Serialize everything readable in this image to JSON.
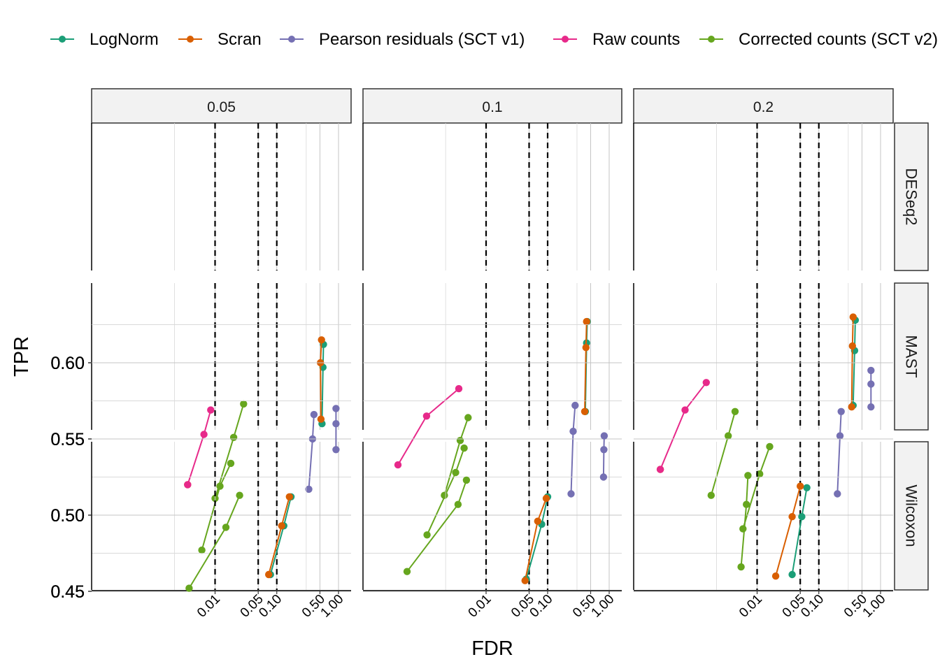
{
  "chart_data": {
    "type": "line",
    "xlabel": "FDR",
    "ylabel": "TPR",
    "x_scale": "log10",
    "xlim": [
      0.0001,
      1.0
    ],
    "ylim": [
      0.45,
      0.63
    ],
    "x_ticks": [
      {
        "value": 0.01,
        "label": "0.01"
      },
      {
        "value": 0.05,
        "label": "0.05"
      },
      {
        "value": 0.1,
        "label": "0.10"
      },
      {
        "value": 0.5,
        "label": "0.50"
      },
      {
        "value": 1.0,
        "label": "1.00"
      }
    ],
    "y_ticks": [
      {
        "value": 0.45,
        "label": "0.45"
      },
      {
        "value": 0.5,
        "label": "0.50"
      },
      {
        "value": 0.55,
        "label": "0.55"
      },
      {
        "value": 0.6,
        "label": "0.60"
      }
    ],
    "legend_position": "top",
    "grid": true,
    "series": [
      {
        "key": "lognorm",
        "name": "LogNorm",
        "color": "#1B9E77"
      },
      {
        "key": "scran",
        "name": "Scran",
        "color": "#D95F02"
      },
      {
        "key": "pearson",
        "name": "Pearson residuals (SCT v1)",
        "color": "#7570B3"
      },
      {
        "key": "raw",
        "name": "Raw counts",
        "color": "#E7298A"
      },
      {
        "key": "corrected",
        "name": "Corrected counts (SCT v2)",
        "color": "#66A61E"
      }
    ],
    "col_facets": [
      {
        "label": "0.05",
        "nominal_fdr": 0.05
      },
      {
        "label": "0.1",
        "nominal_fdr": 0.1
      },
      {
        "label": "0.2",
        "nominal_fdr": 0.2
      }
    ],
    "row_facets": [
      "DESeq2",
      "MAST",
      "Wilcoxon"
    ],
    "reference_lines_x": [
      0.01,
      0.05,
      0.1
    ],
    "panels": [
      {
        "row": 0,
        "col": 0,
        "lines": [
          {
            "series": "raw",
            "points": [
              [
                0.0036,
                0.52
              ],
              [
                0.0066,
                0.553
              ],
              [
                0.0085,
                0.569
              ]
            ]
          },
          {
            "series": "scran",
            "points": [
              [
                0.0036,
                0.52
              ]
            ]
          },
          {
            "series": "corrected",
            "points": [
              [
                0.01,
                0.511
              ],
              [
                0.02,
                0.551
              ],
              [
                0.029,
                0.573
              ]
            ]
          }
        ]
      },
      {
        "row": 0,
        "col": 1,
        "lines": [
          {
            "series": "raw",
            "points": [
              [
                0.00037,
                0.533
              ],
              [
                0.00108,
                0.565
              ],
              [
                0.0036,
                0.583
              ]
            ]
          },
          {
            "series": "corrected",
            "points": [
              [
                0.0021,
                0.513
              ],
              [
                0.0038,
                0.549
              ],
              [
                0.0051,
                0.564
              ]
            ]
          }
        ]
      },
      {
        "row": 0,
        "col": 2,
        "lines": [
          {
            "series": "raw",
            "points": [
              [
                0.00027,
                0.53
              ],
              [
                0.00068,
                0.569
              ],
              [
                0.0015,
                0.587
              ]
            ]
          },
          {
            "series": "scran",
            "points": [
              [
                0.00027,
                0.53
              ]
            ]
          },
          {
            "series": "corrected",
            "points": [
              [
                0.0018,
                0.513
              ],
              [
                0.0034,
                0.552
              ],
              [
                0.0044,
                0.568
              ]
            ]
          }
        ]
      },
      {
        "row": 1,
        "col": 0,
        "lines": [
          {
            "series": "lognorm",
            "points": [
              [
                0.54,
                0.56
              ],
              [
                0.56,
                0.597
              ],
              [
                0.57,
                0.612
              ]
            ]
          },
          {
            "series": "scran",
            "points": [
              [
                0.52,
                0.563
              ],
              [
                0.51,
                0.6
              ],
              [
                0.53,
                0.615
              ]
            ]
          },
          {
            "series": "pearson",
            "points": [
              [
                0.33,
                0.517
              ],
              [
                0.38,
                0.55
              ],
              [
                0.4,
                0.566
              ]
            ]
          },
          {
            "series": "corrected",
            "points": [
              [
                0.0061,
                0.477
              ],
              [
                0.012,
                0.519
              ],
              [
                0.018,
                0.534
              ]
            ]
          }
        ]
      },
      {
        "row": 1,
        "col": 1,
        "lines": [
          {
            "series": "lognorm",
            "points": [
              [
                0.41,
                0.568
              ],
              [
                0.43,
                0.613
              ],
              [
                0.44,
                0.627
              ]
            ]
          },
          {
            "series": "scran",
            "points": [
              [
                0.4,
                0.568
              ],
              [
                0.42,
                0.61
              ],
              [
                0.43,
                0.627
              ]
            ]
          },
          {
            "series": "pearson",
            "points": [
              [
                0.24,
                0.514
              ],
              [
                0.26,
                0.555
              ],
              [
                0.28,
                0.572
              ]
            ]
          },
          {
            "series": "corrected",
            "points": [
              [
                0.0011,
                0.487
              ],
              [
                0.0032,
                0.528
              ],
              [
                0.0044,
                0.544
              ]
            ]
          }
        ]
      },
      {
        "row": 1,
        "col": 2,
        "lines": [
          {
            "series": "lognorm",
            "points": [
              [
                0.36,
                0.572
              ],
              [
                0.38,
                0.608
              ],
              [
                0.39,
                0.628
              ]
            ]
          },
          {
            "series": "scran",
            "points": [
              [
                0.34,
                0.571
              ],
              [
                0.35,
                0.611
              ],
              [
                0.36,
                0.63
              ]
            ]
          },
          {
            "series": "pearson",
            "points": [
              [
                0.2,
                0.514
              ],
              [
                0.22,
                0.552
              ],
              [
                0.23,
                0.568
              ]
            ]
          },
          {
            "series": "corrected",
            "points": [
              [
                0.0059,
                0.491
              ],
              [
                0.011,
                0.527
              ],
              [
                0.016,
                0.545
              ]
            ]
          }
        ]
      },
      {
        "row": 2,
        "col": 0,
        "lines": [
          {
            "series": "lognorm",
            "points": [
              [
                0.079,
                0.461
              ],
              [
                0.13,
                0.493
              ],
              [
                0.17,
                0.512
              ]
            ]
          },
          {
            "series": "scran",
            "points": [
              [
                0.074,
                0.461
              ],
              [
                0.12,
                0.493
              ],
              [
                0.16,
                0.512
              ]
            ]
          },
          {
            "series": "pearson",
            "points": [
              [
                0.91,
                0.543
              ],
              [
                0.91,
                0.56
              ],
              [
                0.91,
                0.57
              ]
            ]
          },
          {
            "series": "corrected",
            "points": [
              [
                0.0038,
                0.452
              ],
              [
                0.015,
                0.492
              ],
              [
                0.025,
                0.513
              ]
            ]
          }
        ]
      },
      {
        "row": 2,
        "col": 1,
        "lines": [
          {
            "series": "lognorm",
            "points": [
              [
                0.045,
                0.458
              ],
              [
                0.08,
                0.494
              ],
              [
                0.1,
                0.512
              ]
            ]
          },
          {
            "series": "scran",
            "points": [
              [
                0.043,
                0.457
              ],
              [
                0.069,
                0.496
              ],
              [
                0.095,
                0.511
              ]
            ]
          },
          {
            "series": "pearson",
            "points": [
              [
                0.81,
                0.525
              ],
              [
                0.82,
                0.543
              ],
              [
                0.83,
                0.552
              ]
            ]
          },
          {
            "series": "corrected",
            "points": [
              [
                0.00052,
                0.463
              ],
              [
                0.0035,
                0.507
              ],
              [
                0.0048,
                0.523
              ]
            ]
          }
        ]
      },
      {
        "row": 2,
        "col": 2,
        "lines": [
          {
            "series": "lognorm",
            "points": [
              [
                0.037,
                0.461
              ],
              [
                0.053,
                0.499
              ],
              [
                0.064,
                0.518
              ]
            ]
          },
          {
            "series": "scran",
            "points": [
              [
                0.02,
                0.46
              ],
              [
                0.037,
                0.499
              ],
              [
                0.05,
                0.519
              ]
            ]
          },
          {
            "series": "pearson",
            "points": [
              [
                0.7,
                0.571
              ],
              [
                0.7,
                0.586
              ],
              [
                0.7,
                0.595
              ]
            ]
          },
          {
            "series": "corrected",
            "points": [
              [
                0.0055,
                0.466
              ],
              [
                0.0067,
                0.507
              ],
              [
                0.0071,
                0.526
              ]
            ]
          }
        ]
      }
    ]
  }
}
